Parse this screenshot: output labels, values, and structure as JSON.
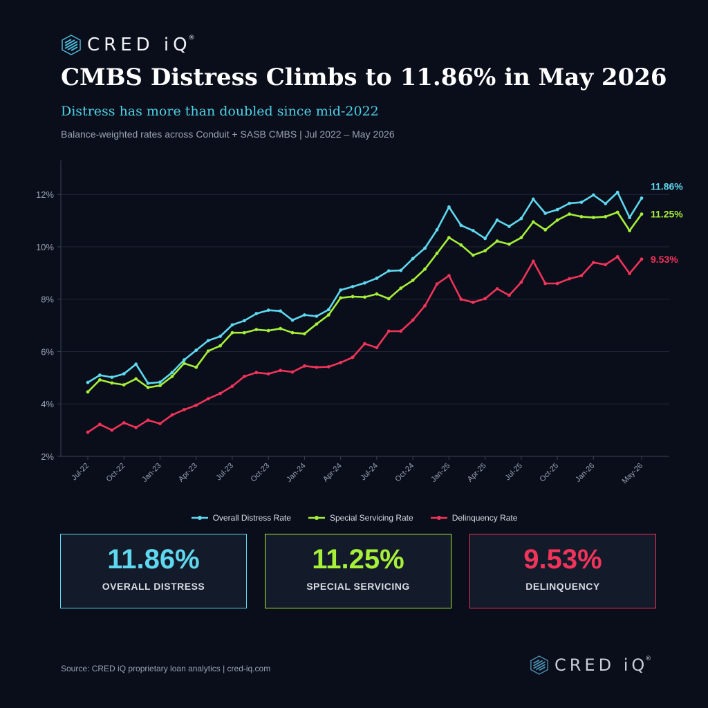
{
  "brand": {
    "name": "CRED iQ",
    "trademark": "®",
    "logo_icon": "stacked-bars-logo-icon"
  },
  "header": {
    "title": "CMBS Distress Climbs to 11.86% in May 2026",
    "subtitle": "Distress has more than doubled since mid-2022",
    "note": "Balance-weighted rates across Conduit + SASB CMBS  |  Jul 2022 – May 2026"
  },
  "colors": {
    "background": "#0a0e1a",
    "overall": "#5fd8ef",
    "special": "#a6f03a",
    "delinquency": "#f0345a",
    "card_bg": "#131a2a"
  },
  "chart_data": {
    "type": "line",
    "x_start": "Jul-22",
    "x_end": "May-26",
    "xticks": [
      "Jul-22",
      "Oct-22",
      "Jan-23",
      "Apr-23",
      "Jul-23",
      "Oct-23",
      "Jan-24",
      "Apr-24",
      "Jul-24",
      "Oct-24",
      "Jan-25",
      "Apr-25",
      "Jul-25",
      "Oct-25",
      "Jan-26",
      "May-26"
    ],
    "xtick_month_index": [
      0,
      3,
      6,
      9,
      12,
      15,
      18,
      21,
      24,
      27,
      30,
      33,
      36,
      39,
      42,
      46
    ],
    "yticks": [
      2,
      4,
      6,
      8,
      10,
      12
    ],
    "ytick_labels": [
      "2%",
      "4%",
      "6%",
      "8%",
      "10%",
      "12%"
    ],
    "ylim": [
      2,
      13.3
    ],
    "grid": true,
    "legend_position": "bottom",
    "series": [
      {
        "name": "Overall Distress Rate",
        "color": "#5fd8ef",
        "end_label": "11.86%",
        "values": [
          4.82,
          5.1,
          5.02,
          5.15,
          5.52,
          4.79,
          4.83,
          5.2,
          5.68,
          6.05,
          6.42,
          6.58,
          7.02,
          7.18,
          7.45,
          7.58,
          7.55,
          7.2,
          7.4,
          7.35,
          7.6,
          8.35,
          8.48,
          8.62,
          8.8,
          9.08,
          9.1,
          9.55,
          9.95,
          10.65,
          11.52,
          10.82,
          10.62,
          10.32,
          11.02,
          10.78,
          11.08,
          11.82,
          11.28,
          11.42,
          11.66,
          11.7,
          11.98,
          11.65,
          12.08,
          11.12,
          11.86
        ]
      },
      {
        "name": "Special Servicing Rate",
        "color": "#a6f03a",
        "end_label": "11.25%",
        "values": [
          4.46,
          4.92,
          4.8,
          4.73,
          4.96,
          4.63,
          4.7,
          5.05,
          5.55,
          5.4,
          6.02,
          6.22,
          6.72,
          6.72,
          6.84,
          6.8,
          6.88,
          6.72,
          6.68,
          7.05,
          7.4,
          8.05,
          8.1,
          8.08,
          8.2,
          8.02,
          8.42,
          8.72,
          9.15,
          9.75,
          10.35,
          10.07,
          9.68,
          9.85,
          10.22,
          10.1,
          10.35,
          10.95,
          10.65,
          11.02,
          11.25,
          11.15,
          11.12,
          11.15,
          11.32,
          10.62,
          11.25
        ]
      },
      {
        "name": "Delinquency Rate",
        "color": "#f0345a",
        "end_label": "9.53%",
        "values": [
          2.92,
          3.22,
          3.0,
          3.28,
          3.1,
          3.38,
          3.25,
          3.58,
          3.78,
          3.95,
          4.2,
          4.4,
          4.68,
          5.05,
          5.2,
          5.15,
          5.28,
          5.22,
          5.45,
          5.4,
          5.42,
          5.58,
          5.78,
          6.3,
          6.15,
          6.78,
          6.78,
          7.2,
          7.75,
          8.58,
          8.9,
          8.0,
          7.88,
          8.02,
          8.4,
          8.15,
          8.65,
          9.45,
          8.6,
          8.6,
          8.78,
          8.9,
          9.4,
          9.32,
          9.62,
          8.98,
          9.53
        ]
      }
    ]
  },
  "cards": [
    {
      "value": "11.86%",
      "label": "OVERALL DISTRESS"
    },
    {
      "value": "11.25%",
      "label": "SPECIAL SERVICING"
    },
    {
      "value": "9.53%",
      "label": "DELINQUENCY"
    }
  ],
  "footer": {
    "source": "Source: CRED iQ proprietary loan analytics  |  cred-iq.com"
  }
}
